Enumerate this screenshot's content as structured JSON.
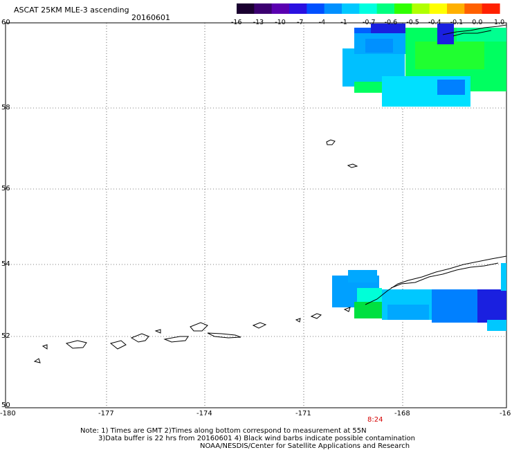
{
  "header": {
    "title": "ASCAT 25KM MLE-3 ascending",
    "date": "20160601"
  },
  "colorbar": {
    "labels": [
      "-16",
      "-13",
      "-10",
      "-7",
      "-4",
      "-1",
      "-0.7",
      "-0.6",
      "-0.5",
      "-0.4",
      "-0.1",
      "0.0",
      "1.0"
    ],
    "colors": [
      "#1a0030",
      "#3b0070",
      "#5a00b0",
      "#2a10e0",
      "#0050ff",
      "#0090ff",
      "#00c8ff",
      "#00ffe0",
      "#00ff80",
      "#30ff00",
      "#b0ff00",
      "#ffff00",
      "#ffb000",
      "#ff6000",
      "#ff2000"
    ]
  },
  "axes": {
    "y_labels": [
      "60",
      "58",
      "56",
      "54",
      "52",
      "50"
    ],
    "x_labels": [
      "-180",
      "-177",
      "-174",
      "-171",
      "-168",
      "-16"
    ]
  },
  "pass_time": "8:24",
  "footer": {
    "line1": "Note: 1) Times are GMT 2)Times along bottom correspond to measurement at 55N",
    "line2": "3)Data buffer is 22 hrs from 20160601 4) Black wind barbs indicate possible contamination",
    "line3": "NOAA/NESDIS/Center for Satellite Applications and Research"
  }
}
